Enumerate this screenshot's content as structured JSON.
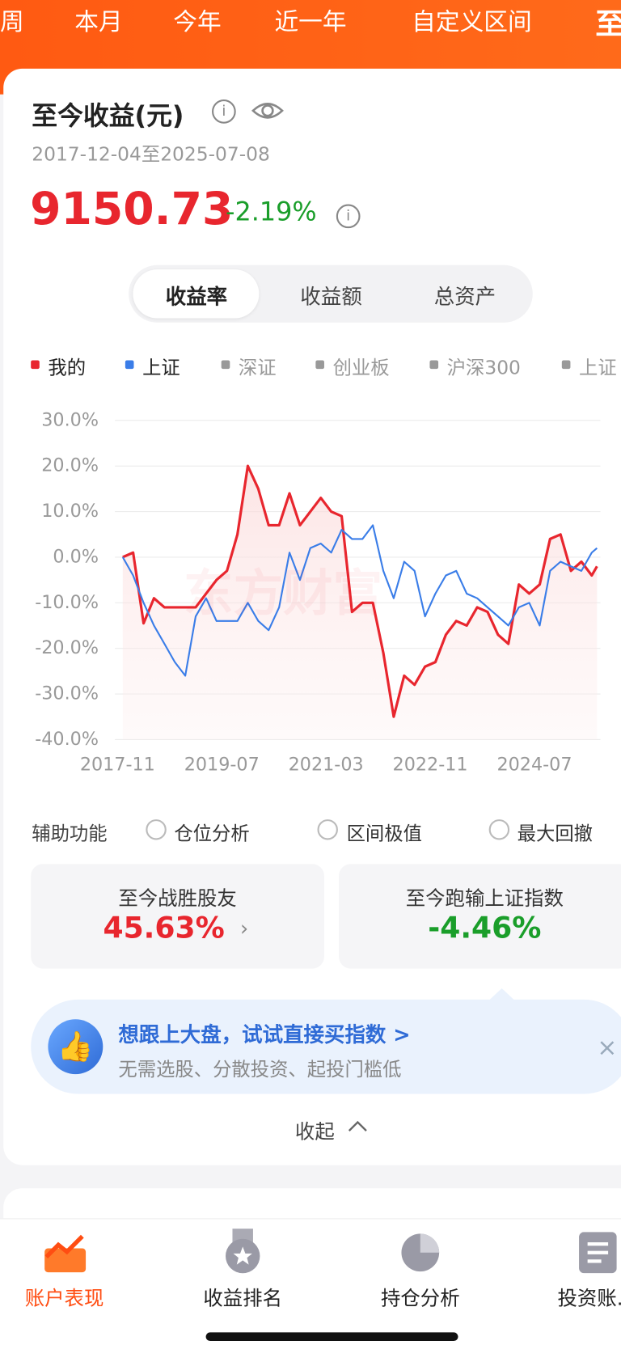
{
  "top_tabs": [
    "周",
    "本月",
    "今年",
    "近一年",
    "自定义区间",
    "至"
  ],
  "card": {
    "title": "至今收益(元)",
    "date_range": "2017-12-04至2025-07-08",
    "total": "9150.73",
    "change": "-2.19%",
    "segments": [
      "收益率",
      "收益额",
      "总资产"
    ],
    "legend_inactive": [
      "深证",
      "创业板",
      "沪深300",
      "上证"
    ],
    "watermark": "东方财富"
  },
  "chart_data": {
    "type": "line",
    "x": [
      "2017-12",
      "2018-02",
      "2018-04",
      "2018-06",
      "2018-08",
      "2018-10",
      "2018-12",
      "2019-02",
      "2019-04",
      "2019-06",
      "2019-08",
      "2019-10",
      "2019-12",
      "2020-02",
      "2020-04",
      "2020-06",
      "2020-08",
      "2020-10",
      "2020-12",
      "2021-02",
      "2021-04",
      "2021-06",
      "2021-08",
      "2021-10",
      "2021-12",
      "2022-02",
      "2022-04",
      "2022-06",
      "2022-08",
      "2022-10",
      "2022-12",
      "2023-02",
      "2023-04",
      "2023-06",
      "2023-08",
      "2023-10",
      "2023-12",
      "2024-02",
      "2024-04",
      "2024-06",
      "2024-08",
      "2024-10",
      "2024-12",
      "2025-02",
      "2025-04",
      "2025-06",
      "2025-07"
    ],
    "series": [
      {
        "name": "我的",
        "color": "#e8262e",
        "values": [
          0,
          1,
          -14.5,
          -9,
          -11,
          -11,
          -11,
          -11,
          -8,
          -5,
          -3,
          5,
          20,
          15,
          7,
          7,
          14,
          7,
          10,
          13,
          10,
          9,
          -12,
          -10,
          -10,
          -21,
          -35,
          -26,
          -28,
          -24,
          -23,
          -17,
          -14,
          -15,
          -11,
          -12,
          -17,
          -19,
          -6,
          -8,
          -6,
          4,
          5,
          -3,
          -1,
          -4,
          -2
        ]
      },
      {
        "name": "上证",
        "color": "#3a7de8",
        "values": [
          0,
          -4,
          -10,
          -15,
          -19,
          -23,
          -26,
          -13,
          -9,
          -14,
          -14,
          -14,
          -10,
          -14,
          -16,
          -11,
          1,
          -5,
          2,
          3,
          1,
          6,
          4,
          4,
          7,
          -3,
          -9,
          -1,
          -3,
          -13,
          -8,
          -4,
          -3,
          -8,
          -9,
          -11,
          -13,
          -15,
          -11,
          -10,
          -15,
          -3,
          -1,
          -2,
          -3,
          1,
          2
        ]
      }
    ],
    "xlim": [
      "2017-11",
      "2025-07"
    ],
    "xticks": [
      "2017-11",
      "2019-07",
      "2021-03",
      "2022-11",
      "2024-07"
    ],
    "ylim": [
      -40,
      30
    ],
    "yticks": [
      {
        "value": -40,
        "label": "-40.0%"
      },
      {
        "value": -30,
        "label": "-30.0%"
      },
      {
        "value": -20,
        "label": "-20.0%"
      },
      {
        "value": -10,
        "label": "-10.0%"
      },
      {
        "value": 0,
        "label": "0.0%"
      },
      {
        "value": 10,
        "label": "10.0%"
      },
      {
        "value": 20,
        "label": "20.0%"
      },
      {
        "value": 30,
        "label": "30.0%"
      }
    ],
    "grid": true
  },
  "tools": {
    "label": "辅助功能",
    "options": [
      "仓位分析",
      "区间极值",
      "最大回撤"
    ]
  },
  "stats": [
    {
      "label": "至今战胜股友",
      "value": "45.63%"
    },
    {
      "label": "至今跑输上证指数",
      "value": "-4.46%"
    }
  ],
  "banner": {
    "title": "想跟上大盘，试试直接买指数 >",
    "subtitle": "无需选股、分散投资、起投门槛低"
  },
  "collapse": "收起",
  "nav": [
    "账户表现",
    "收益排名",
    "持仓分析",
    "投资账..."
  ]
}
